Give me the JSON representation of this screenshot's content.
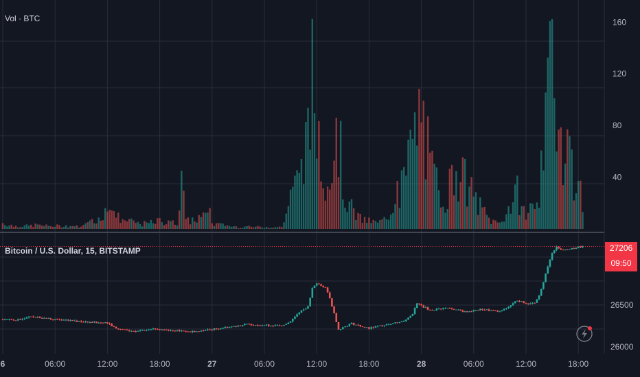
{
  "volume_pane": {
    "legend": "Vol · BTC",
    "y_ticks": [
      "160",
      "120",
      "80",
      "40"
    ]
  },
  "price_pane": {
    "legend": "Bitcoin / U.S. Dollar, 15, BITSTAMP",
    "y_ticks": [
      "26500",
      "26000"
    ],
    "last_price": "27206",
    "countdown": "09:50"
  },
  "x_ticks": [
    "6",
    "06:00",
    "12:00",
    "18:00",
    "27",
    "06:00",
    "12:00",
    "18:00",
    "28",
    "06:00",
    "12:00",
    "18:00"
  ],
  "colors": {
    "up": "#26a69a",
    "down": "#ef5350",
    "background": "#131722",
    "grid": "#2a2e39",
    "last_price": "#f23645"
  },
  "icons": {
    "alert": "lightning-bolt-icon"
  },
  "chart_data": [
    {
      "type": "bar",
      "name": "volume",
      "y_range": [
        0,
        175
      ],
      "x_start_hour": 0,
      "x_end_hour": 66.5,
      "anchors": [
        [
          0,
          6
        ],
        [
          1,
          3
        ],
        [
          2,
          3
        ],
        [
          3,
          3
        ],
        [
          4,
          4
        ],
        [
          5,
          3
        ],
        [
          6,
          3
        ],
        [
          7,
          3
        ],
        [
          8,
          3
        ],
        [
          9,
          2
        ],
        [
          10,
          6
        ],
        [
          11,
          10
        ],
        [
          11.5,
          19
        ],
        [
          12,
          14
        ],
        [
          13,
          12
        ],
        [
          14,
          9
        ],
        [
          15,
          6
        ],
        [
          16,
          5
        ],
        [
          17,
          6
        ],
        [
          18,
          8
        ],
        [
          19,
          6
        ],
        [
          20,
          6
        ],
        [
          20.5,
          70
        ],
        [
          21,
          7
        ],
        [
          22,
          10
        ],
        [
          23,
          11
        ],
        [
          23.5,
          28
        ],
        [
          24,
          5
        ],
        [
          25,
          4
        ],
        [
          26,
          3
        ],
        [
          27,
          2
        ],
        [
          28,
          2
        ],
        [
          29,
          2
        ],
        [
          30,
          2
        ],
        [
          31,
          2
        ],
        [
          32,
          2
        ],
        [
          33,
          30
        ],
        [
          34,
          45
        ],
        [
          34.5,
          95
        ],
        [
          35,
          80
        ],
        [
          35.5,
          145
        ],
        [
          36,
          110
        ],
        [
          37,
          62
        ],
        [
          38,
          48
        ],
        [
          38.5,
          110
        ],
        [
          39,
          42
        ],
        [
          40,
          20
        ],
        [
          41,
          10
        ],
        [
          42,
          8
        ],
        [
          43,
          6
        ],
        [
          44,
          10
        ],
        [
          45,
          30
        ],
        [
          46,
          45
        ],
        [
          47,
          78
        ],
        [
          48,
          120
        ],
        [
          49,
          58
        ],
        [
          50,
          40
        ],
        [
          51,
          34
        ],
        [
          52,
          65
        ],
        [
          53,
          46
        ],
        [
          54,
          32
        ],
        [
          55,
          18
        ],
        [
          56,
          8
        ],
        [
          57,
          6
        ],
        [
          58,
          20
        ],
        [
          59,
          35
        ],
        [
          60,
          12
        ],
        [
          61,
          28
        ],
        [
          62,
          60
        ],
        [
          63,
          175
        ],
        [
          64,
          100
        ],
        [
          65,
          80
        ],
        [
          66,
          38
        ],
        [
          66.5,
          30
        ]
      ]
    },
    {
      "type": "candlestick",
      "name": "Bitcoin / U.S. Dollar, 15, BITSTAMP",
      "y_range": [
        25950,
        27350
      ],
      "last": 27206,
      "anchors": [
        [
          0,
          26330
        ],
        [
          2,
          26320
        ],
        [
          3,
          26370
        ],
        [
          5,
          26340
        ],
        [
          8,
          26310
        ],
        [
          10,
          26300
        ],
        [
          12,
          26285
        ],
        [
          13,
          26220
        ],
        [
          15,
          26180
        ],
        [
          17,
          26220
        ],
        [
          19,
          26200
        ],
        [
          22,
          26180
        ],
        [
          24,
          26210
        ],
        [
          28,
          26270
        ],
        [
          30,
          26260
        ],
        [
          32,
          26250
        ],
        [
          33,
          26310
        ],
        [
          34,
          26420
        ],
        [
          35,
          26480
        ],
        [
          35.5,
          26700
        ],
        [
          36,
          26760
        ],
        [
          37,
          26710
        ],
        [
          37.5,
          26580
        ],
        [
          38,
          26400
        ],
        [
          38.5,
          26210
        ],
        [
          40,
          26280
        ],
        [
          42,
          26220
        ],
        [
          44,
          26270
        ],
        [
          46,
          26310
        ],
        [
          47,
          26400
        ],
        [
          47.5,
          26520
        ],
        [
          49,
          26440
        ],
        [
          51,
          26470
        ],
        [
          53,
          26420
        ],
        [
          55,
          26450
        ],
        [
          57,
          26420
        ],
        [
          58,
          26480
        ],
        [
          59,
          26560
        ],
        [
          60,
          26520
        ],
        [
          61,
          26530
        ],
        [
          61.5,
          26620
        ],
        [
          62,
          26780
        ],
        [
          62.5,
          26960
        ],
        [
          63,
          27120
        ],
        [
          63.5,
          27210
        ],
        [
          64,
          27160
        ],
        [
          66.5,
          27206
        ]
      ]
    }
  ]
}
